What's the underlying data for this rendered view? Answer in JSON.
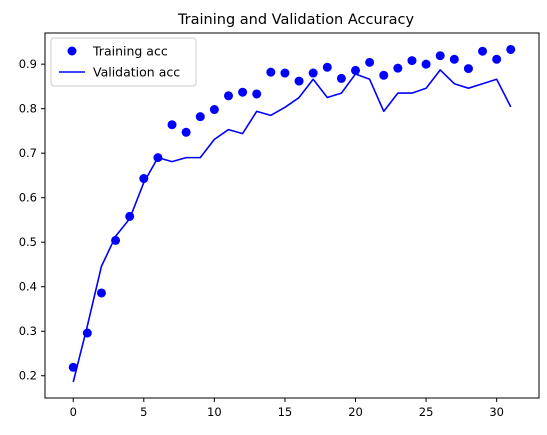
{
  "chart_data": {
    "type": "line",
    "title": "Training and Validation Accuracy",
    "xlabel": "",
    "ylabel": "",
    "xlim": [
      -2,
      33
    ],
    "ylim": [
      0.15,
      0.97
    ],
    "xticks": [
      0,
      5,
      10,
      15,
      20,
      25,
      30
    ],
    "yticks": [
      0.2,
      0.3,
      0.4,
      0.5,
      0.6,
      0.7,
      0.8,
      0.9
    ],
    "ytick_labels": [
      "0.2",
      "0.3",
      "0.4",
      "0.5",
      "0.6",
      "0.7",
      "0.8",
      "0.9"
    ],
    "x": [
      0,
      1,
      2,
      3,
      4,
      5,
      6,
      7,
      8,
      9,
      10,
      11,
      12,
      13,
      14,
      15,
      16,
      17,
      18,
      19,
      20,
      21,
      22,
      23,
      24,
      25,
      26,
      27,
      28,
      29,
      30,
      31
    ],
    "legend_position": "upper-left",
    "grid": false,
    "series": [
      {
        "name": "Training acc",
        "style": "markers",
        "color": "#0000ff",
        "values": [
          0.219,
          0.296,
          0.386,
          0.504,
          0.558,
          0.643,
          0.69,
          0.764,
          0.747,
          0.782,
          0.798,
          0.829,
          0.837,
          0.833,
          0.882,
          0.88,
          0.862,
          0.88,
          0.893,
          0.868,
          0.886,
          0.904,
          0.875,
          0.891,
          0.908,
          0.9,
          0.919,
          0.911,
          0.89,
          0.929,
          0.911,
          0.933
        ]
      },
      {
        "name": "Validation acc",
        "style": "line",
        "color": "#0000ff",
        "values": [
          0.186,
          0.312,
          0.446,
          0.513,
          0.553,
          0.634,
          0.69,
          0.681,
          0.69,
          0.69,
          0.731,
          0.753,
          0.744,
          0.794,
          0.785,
          0.803,
          0.825,
          0.866,
          0.825,
          0.835,
          0.878,
          0.866,
          0.794,
          0.835,
          0.835,
          0.846,
          0.887,
          0.856,
          0.846,
          0.856,
          0.866,
          0.804
        ]
      }
    ]
  }
}
